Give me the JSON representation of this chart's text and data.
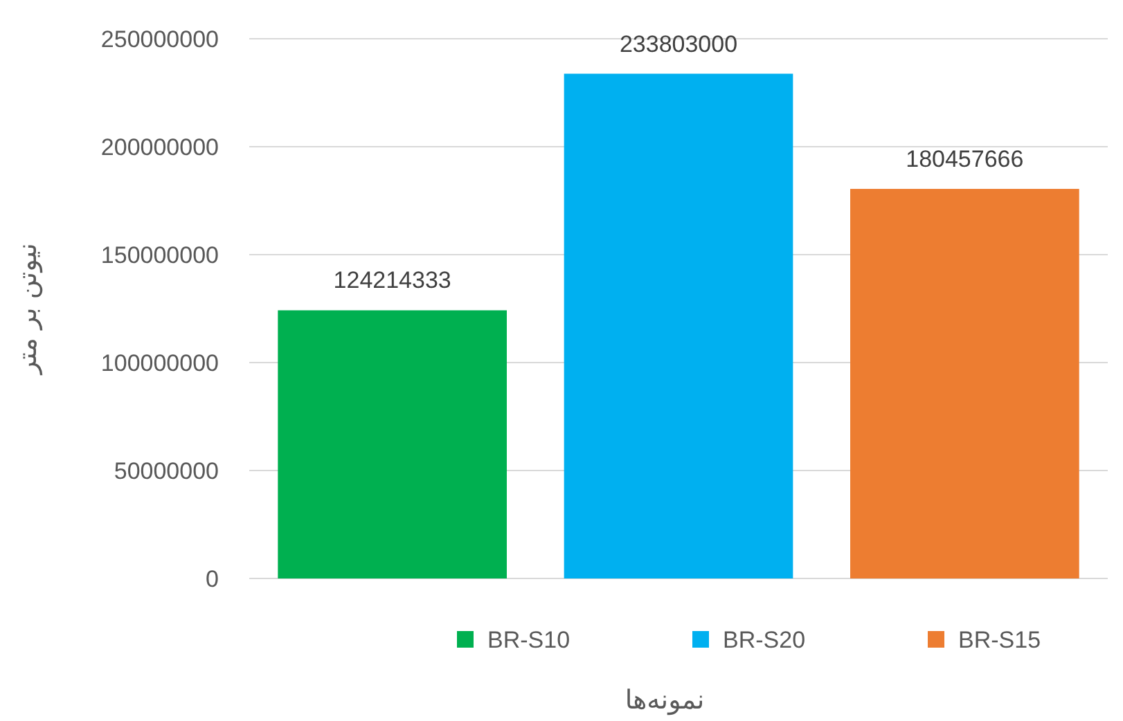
{
  "chart_data": {
    "type": "bar",
    "ylabel": "نیوتن بر متر",
    "xlabel": "نمونه‌ها",
    "categories": [
      null,
      null,
      null
    ],
    "series": [
      {
        "name": "BR-S10",
        "color": "#00b050",
        "values": [
          124214333,
          null,
          null
        ]
      },
      {
        "name": "BR-S20",
        "color": "#00b0f0",
        "values": [
          null,
          233803000,
          null
        ]
      },
      {
        "name": "BR-S15",
        "color": "#ed7d31",
        "values": [
          null,
          null,
          180457666
        ]
      }
    ],
    "ylim": [
      0,
      250000000
    ],
    "yticks": [
      0,
      50000000,
      100000000,
      150000000,
      200000000,
      250000000
    ],
    "grid": "y",
    "legend": "bottom",
    "data_labels": true
  }
}
